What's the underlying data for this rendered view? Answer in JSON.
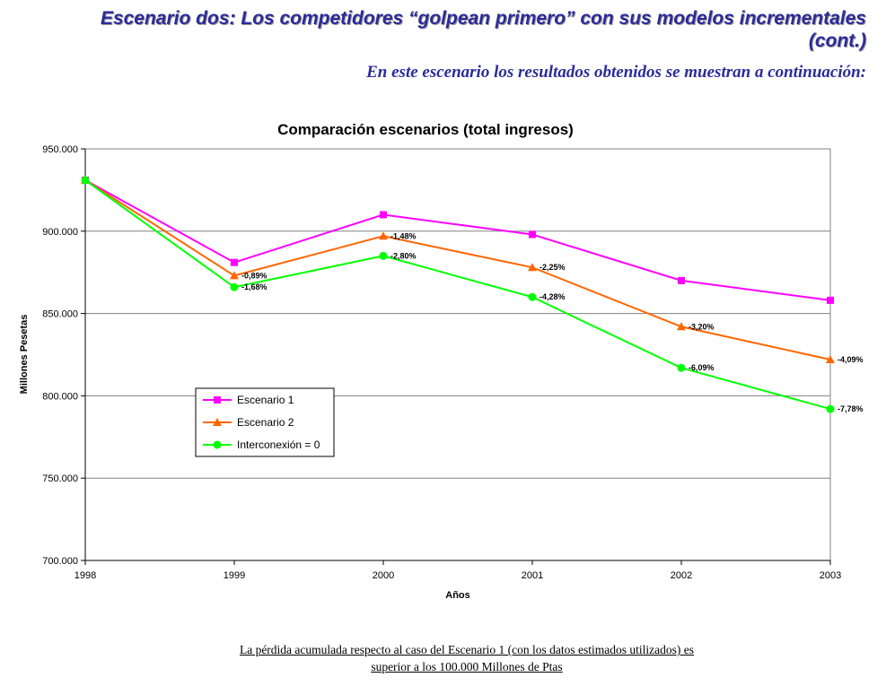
{
  "slide": {
    "title": "Escenario dos: Los competidores “golpean primero” con sus modelos incrementales (cont.)",
    "subtitle": "En este escenario los resultados obtenidos se muestran a continuación:",
    "footnote_line1": "La pérdida acumulada respecto al caso del Escenario 1 (con los datos estimados utilizados) es",
    "footnote_line2": "superior a los 100.000 Millones de Ptas"
  },
  "chart_data": {
    "type": "line",
    "title": "Comparación escenarios (total ingresos)",
    "xlabel": "Años",
    "ylabel": "Millones Pesetas",
    "x": [
      "1998",
      "1999",
      "2000",
      "2001",
      "2002",
      "2003"
    ],
    "ylim": [
      700000,
      950000
    ],
    "yticks": [
      700000,
      750000,
      800000,
      850000,
      900000,
      950000
    ],
    "ytick_labels": [
      "700.000",
      "750.000",
      "800.000",
      "850.000",
      "900.000",
      "950.000"
    ],
    "grid": "horizontal",
    "legend_position": "lower-left",
    "series": [
      {
        "name": "Escenario 1",
        "color": "#ff00ff",
        "marker": "square",
        "values": [
          931000,
          881000,
          910000,
          898000,
          870000,
          858000
        ],
        "labels": [
          "",
          "",
          "",
          "",
          "",
          ""
        ]
      },
      {
        "name": "Escenario 2",
        "color": "#ff6600",
        "marker": "triangle",
        "values": [
          931000,
          873000,
          897000,
          878000,
          842000,
          822000
        ],
        "labels": [
          "",
          "-0,89%",
          "-1,48%",
          "-2,25%",
          "-3,20%",
          "-4,09%"
        ]
      },
      {
        "name": "Interconexión = 0",
        "color": "#00ff00",
        "marker": "circle",
        "values": [
          931000,
          866000,
          885000,
          860000,
          817000,
          792000
        ],
        "labels": [
          "",
          "-1,68%",
          "-2,80%",
          "-4,28%",
          "-6,09%",
          "-7,78%"
        ]
      }
    ]
  }
}
